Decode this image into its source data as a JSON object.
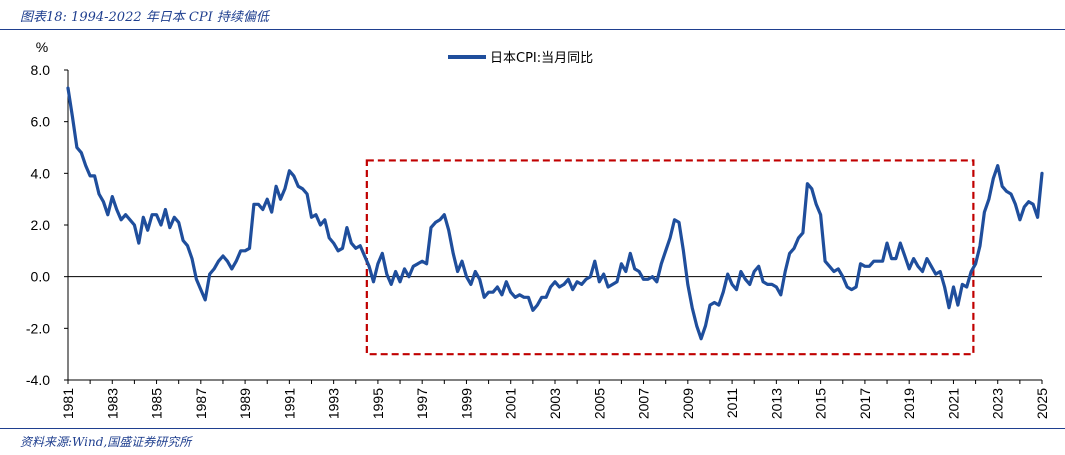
{
  "header": {
    "title": "图表18:  1994-2022 年日本 CPI 持续偏低"
  },
  "footer": {
    "source": "资料来源:Wind,国盛证券研究所"
  },
  "colors": {
    "line": "#1f4e9c",
    "box": "#c00000",
    "axis": "#000000"
  },
  "chart_data": {
    "type": "line",
    "title": "",
    "ylabel": "%",
    "xlabel": "",
    "ylim": [
      -4,
      8
    ],
    "yticks": [
      "8.0",
      "6.0",
      "4.0",
      "2.0",
      "0.0",
      "-2.0",
      "-4.0"
    ],
    "xlim": [
      1981,
      2025
    ],
    "xticks": [
      "1981",
      "1983",
      "1985",
      "1987",
      "1989",
      "1991",
      "1993",
      "1995",
      "1997",
      "1999",
      "2001",
      "2003",
      "2005",
      "2007",
      "2009",
      "2011",
      "2013",
      "2015",
      "2017",
      "2019",
      "2021",
      "2023",
      "2025"
    ],
    "legend": {
      "position": "top-center",
      "entries": [
        "日本CPI:当月同比"
      ]
    },
    "highlight_box": {
      "x": [
        1994.5,
        2021.9
      ],
      "y": [
        -3.0,
        4.5
      ]
    },
    "series": [
      {
        "name": "日本CPI:当月同比",
        "points": [
          [
            1981.0,
            7.3
          ],
          [
            1981.2,
            6.2
          ],
          [
            1981.4,
            5.0
          ],
          [
            1981.6,
            4.8
          ],
          [
            1981.8,
            4.3
          ],
          [
            1982.0,
            3.9
          ],
          [
            1982.2,
            3.9
          ],
          [
            1982.4,
            3.2
          ],
          [
            1982.6,
            2.9
          ],
          [
            1982.8,
            2.4
          ],
          [
            1983.0,
            3.1
          ],
          [
            1983.2,
            2.6
          ],
          [
            1983.4,
            2.2
          ],
          [
            1983.6,
            2.4
          ],
          [
            1983.8,
            2.2
          ],
          [
            1984.0,
            2.0
          ],
          [
            1984.2,
            1.3
          ],
          [
            1984.4,
            2.3
          ],
          [
            1984.6,
            1.8
          ],
          [
            1984.8,
            2.4
          ],
          [
            1985.0,
            2.4
          ],
          [
            1985.2,
            2.0
          ],
          [
            1985.4,
            2.6
          ],
          [
            1985.6,
            1.9
          ],
          [
            1985.8,
            2.3
          ],
          [
            1986.0,
            2.1
          ],
          [
            1986.2,
            1.4
          ],
          [
            1986.4,
            1.2
          ],
          [
            1986.6,
            0.7
          ],
          [
            1986.8,
            -0.1
          ],
          [
            1987.0,
            -0.5
          ],
          [
            1987.2,
            -0.9
          ],
          [
            1987.4,
            0.1
          ],
          [
            1987.6,
            0.3
          ],
          [
            1987.8,
            0.6
          ],
          [
            1988.0,
            0.8
          ],
          [
            1988.2,
            0.6
          ],
          [
            1988.4,
            0.3
          ],
          [
            1988.6,
            0.6
          ],
          [
            1988.8,
            1.0
          ],
          [
            1989.0,
            1.0
          ],
          [
            1989.2,
            1.1
          ],
          [
            1989.4,
            2.8
          ],
          [
            1989.6,
            2.8
          ],
          [
            1989.8,
            2.6
          ],
          [
            1990.0,
            3.0
          ],
          [
            1990.2,
            2.5
          ],
          [
            1990.4,
            3.5
          ],
          [
            1990.6,
            3.0
          ],
          [
            1990.8,
            3.4
          ],
          [
            1991.0,
            4.1
          ],
          [
            1991.2,
            3.9
          ],
          [
            1991.4,
            3.5
          ],
          [
            1991.6,
            3.4
          ],
          [
            1991.8,
            3.2
          ],
          [
            1992.0,
            2.3
          ],
          [
            1992.2,
            2.4
          ],
          [
            1992.4,
            2.0
          ],
          [
            1992.6,
            2.2
          ],
          [
            1992.8,
            1.5
          ],
          [
            1993.0,
            1.3
          ],
          [
            1993.2,
            1.0
          ],
          [
            1993.4,
            1.1
          ],
          [
            1993.6,
            1.9
          ],
          [
            1993.8,
            1.3
          ],
          [
            1994.0,
            1.1
          ],
          [
            1994.2,
            1.2
          ],
          [
            1994.4,
            0.8
          ],
          [
            1994.6,
            0.4
          ],
          [
            1994.8,
            -0.2
          ],
          [
            1995.0,
            0.5
          ],
          [
            1995.2,
            0.9
          ],
          [
            1995.4,
            0.1
          ],
          [
            1995.6,
            -0.3
          ],
          [
            1995.8,
            0.2
          ],
          [
            1996.0,
            -0.2
          ],
          [
            1996.2,
            0.3
          ],
          [
            1996.4,
            0.0
          ],
          [
            1996.6,
            0.4
          ],
          [
            1996.8,
            0.5
          ],
          [
            1997.0,
            0.6
          ],
          [
            1997.2,
            0.5
          ],
          [
            1997.4,
            1.9
          ],
          [
            1997.6,
            2.1
          ],
          [
            1997.8,
            2.2
          ],
          [
            1998.0,
            2.4
          ],
          [
            1998.2,
            1.8
          ],
          [
            1998.4,
            0.9
          ],
          [
            1998.6,
            0.2
          ],
          [
            1998.8,
            0.6
          ],
          [
            1999.0,
            0.0
          ],
          [
            1999.2,
            -0.3
          ],
          [
            1999.4,
            0.2
          ],
          [
            1999.6,
            -0.1
          ],
          [
            1999.8,
            -0.8
          ],
          [
            2000.0,
            -0.6
          ],
          [
            2000.2,
            -0.6
          ],
          [
            2000.4,
            -0.4
          ],
          [
            2000.6,
            -0.7
          ],
          [
            2000.8,
            -0.2
          ],
          [
            2001.0,
            -0.6
          ],
          [
            2001.2,
            -0.8
          ],
          [
            2001.4,
            -0.7
          ],
          [
            2001.6,
            -0.8
          ],
          [
            2001.8,
            -0.8
          ],
          [
            2002.0,
            -1.3
          ],
          [
            2002.2,
            -1.1
          ],
          [
            2002.4,
            -0.8
          ],
          [
            2002.6,
            -0.8
          ],
          [
            2002.8,
            -0.4
          ],
          [
            2003.0,
            -0.2
          ],
          [
            2003.2,
            -0.4
          ],
          [
            2003.4,
            -0.3
          ],
          [
            2003.6,
            -0.1
          ],
          [
            2003.8,
            -0.5
          ],
          [
            2004.0,
            -0.2
          ],
          [
            2004.2,
            -0.3
          ],
          [
            2004.4,
            -0.1
          ],
          [
            2004.6,
            0.0
          ],
          [
            2004.8,
            0.6
          ],
          [
            2005.0,
            -0.2
          ],
          [
            2005.2,
            0.1
          ],
          [
            2005.4,
            -0.4
          ],
          [
            2005.6,
            -0.3
          ],
          [
            2005.8,
            -0.2
          ],
          [
            2006.0,
            0.5
          ],
          [
            2006.2,
            0.2
          ],
          [
            2006.4,
            0.9
          ],
          [
            2006.6,
            0.3
          ],
          [
            2006.8,
            0.2
          ],
          [
            2007.0,
            -0.1
          ],
          [
            2007.2,
            -0.1
          ],
          [
            2007.4,
            0.0
          ],
          [
            2007.6,
            -0.2
          ],
          [
            2007.8,
            0.5
          ],
          [
            2008.0,
            1.0
          ],
          [
            2008.2,
            1.5
          ],
          [
            2008.4,
            2.2
          ],
          [
            2008.6,
            2.1
          ],
          [
            2008.8,
            1.0
          ],
          [
            2009.0,
            -0.3
          ],
          [
            2009.2,
            -1.2
          ],
          [
            2009.4,
            -1.9
          ],
          [
            2009.6,
            -2.4
          ],
          [
            2009.8,
            -1.9
          ],
          [
            2010.0,
            -1.1
          ],
          [
            2010.2,
            -1.0
          ],
          [
            2010.4,
            -1.1
          ],
          [
            2010.6,
            -0.6
          ],
          [
            2010.8,
            0.1
          ],
          [
            2011.0,
            -0.3
          ],
          [
            2011.2,
            -0.5
          ],
          [
            2011.4,
            0.2
          ],
          [
            2011.6,
            -0.1
          ],
          [
            2011.8,
            -0.3
          ],
          [
            2012.0,
            0.2
          ],
          [
            2012.2,
            0.4
          ],
          [
            2012.4,
            -0.2
          ],
          [
            2012.6,
            -0.3
          ],
          [
            2012.8,
            -0.3
          ],
          [
            2013.0,
            -0.4
          ],
          [
            2013.2,
            -0.7
          ],
          [
            2013.4,
            0.2
          ],
          [
            2013.6,
            0.9
          ],
          [
            2013.8,
            1.1
          ],
          [
            2014.0,
            1.5
          ],
          [
            2014.2,
            1.7
          ],
          [
            2014.4,
            3.6
          ],
          [
            2014.6,
            3.4
          ],
          [
            2014.8,
            2.8
          ],
          [
            2015.0,
            2.4
          ],
          [
            2015.2,
            0.6
          ],
          [
            2015.4,
            0.4
          ],
          [
            2015.6,
            0.2
          ],
          [
            2015.8,
            0.3
          ],
          [
            2016.0,
            0.0
          ],
          [
            2016.2,
            -0.4
          ],
          [
            2016.4,
            -0.5
          ],
          [
            2016.6,
            -0.4
          ],
          [
            2016.8,
            0.5
          ],
          [
            2017.0,
            0.4
          ],
          [
            2017.2,
            0.4
          ],
          [
            2017.4,
            0.6
          ],
          [
            2017.6,
            0.6
          ],
          [
            2017.8,
            0.6
          ],
          [
            2018.0,
            1.3
          ],
          [
            2018.2,
            0.7
          ],
          [
            2018.4,
            0.7
          ],
          [
            2018.6,
            1.3
          ],
          [
            2018.8,
            0.8
          ],
          [
            2019.0,
            0.3
          ],
          [
            2019.2,
            0.7
          ],
          [
            2019.4,
            0.4
          ],
          [
            2019.6,
            0.2
          ],
          [
            2019.8,
            0.7
          ],
          [
            2020.0,
            0.4
          ],
          [
            2020.2,
            0.1
          ],
          [
            2020.4,
            0.2
          ],
          [
            2020.6,
            -0.4
          ],
          [
            2020.8,
            -1.2
          ],
          [
            2021.0,
            -0.4
          ],
          [
            2021.2,
            -1.1
          ],
          [
            2021.4,
            -0.3
          ],
          [
            2021.6,
            -0.4
          ],
          [
            2021.8,
            0.2
          ],
          [
            2022.0,
            0.5
          ],
          [
            2022.2,
            1.2
          ],
          [
            2022.4,
            2.5
          ],
          [
            2022.6,
            3.0
          ],
          [
            2022.8,
            3.8
          ],
          [
            2023.0,
            4.3
          ],
          [
            2023.2,
            3.5
          ],
          [
            2023.4,
            3.3
          ],
          [
            2023.6,
            3.2
          ],
          [
            2023.8,
            2.8
          ],
          [
            2024.0,
            2.2
          ],
          [
            2024.2,
            2.7
          ],
          [
            2024.4,
            2.9
          ],
          [
            2024.6,
            2.8
          ],
          [
            2024.8,
            2.3
          ],
          [
            2025.0,
            4.0
          ]
        ]
      }
    ]
  }
}
